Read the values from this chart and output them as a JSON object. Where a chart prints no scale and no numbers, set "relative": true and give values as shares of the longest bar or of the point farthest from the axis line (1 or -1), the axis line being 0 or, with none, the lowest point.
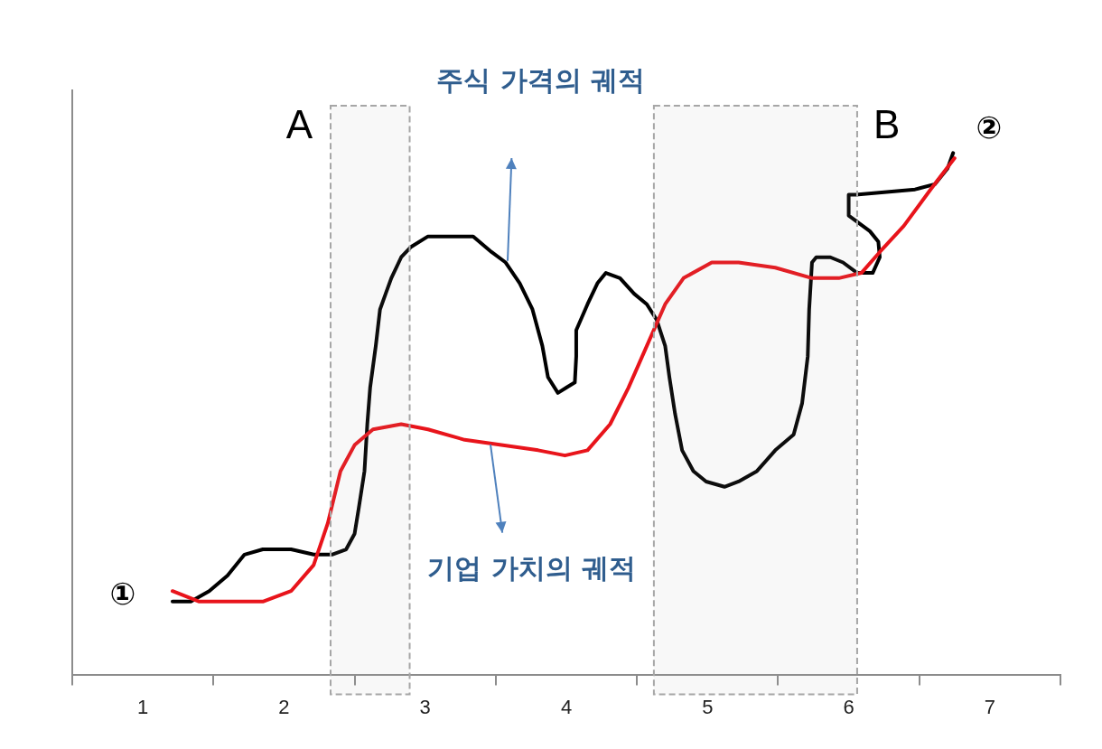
{
  "chart_data": {
    "type": "line",
    "relative": true,
    "xlim": [
      0.5,
      7.5
    ],
    "xticks": [
      {
        "value": 0.5,
        "label": null
      },
      {
        "value": 1,
        "label": "1"
      },
      {
        "value": 1.5,
        "label": null
      },
      {
        "value": 2,
        "label": "2"
      },
      {
        "value": 2.5,
        "label": null
      },
      {
        "value": 3,
        "label": "3"
      },
      {
        "value": 3.5,
        "label": null
      },
      {
        "value": 4,
        "label": "4"
      },
      {
        "value": 4.5,
        "label": null
      },
      {
        "value": 5,
        "label": "5"
      },
      {
        "value": 5.5,
        "label": null
      },
      {
        "value": 6,
        "label": "6"
      },
      {
        "value": 6.5,
        "label": null
      },
      {
        "value": 7,
        "label": "7"
      },
      {
        "value": 7.5,
        "label": null
      }
    ],
    "series": [
      {
        "color": "#e8141b",
        "x": [
          1.21,
          1.4,
          1.66,
          1.85,
          2.05,
          2.21,
          2.31,
          2.4,
          2.5,
          2.63,
          2.83,
          3.02,
          3.28,
          3.54,
          3.8,
          3.99,
          4.15,
          4.31,
          4.44,
          4.57,
          4.7,
          4.83,
          5.03,
          5.22,
          5.48,
          5.74,
          5.93,
          6.09,
          6.22,
          6.39,
          6.58,
          6.75
        ],
        "values": [
          0.16,
          0.14,
          0.14,
          0.14,
          0.16,
          0.21,
          0.29,
          0.39,
          0.44,
          0.47,
          0.48,
          0.47,
          0.45,
          0.44,
          0.43,
          0.42,
          0.43,
          0.48,
          0.55,
          0.63,
          0.71,
          0.76,
          0.79,
          0.79,
          0.78,
          0.76,
          0.76,
          0.77,
          0.81,
          0.86,
          0.93,
          0.99
        ]
      },
      {
        "color": "#000000",
        "x": [
          1.21,
          1.34,
          1.47,
          1.6,
          1.72,
          1.85,
          2.05,
          2.21,
          2.34,
          2.44,
          2.5,
          2.53,
          2.57,
          2.59,
          2.61,
          2.65,
          2.68,
          2.72,
          2.76,
          2.83,
          2.9,
          3.02,
          3.21,
          3.34,
          3.47,
          3.57,
          3.67,
          3.76,
          3.83,
          3.87,
          3.94,
          4.0,
          4.06,
          4.07,
          4.07,
          4.15,
          4.22,
          4.28,
          4.38,
          4.48,
          4.57,
          4.64,
          4.7,
          4.73,
          4.77,
          4.82,
          4.9,
          4.99,
          5.12,
          5.22,
          5.35,
          5.48,
          5.61,
          5.67,
          5.71,
          5.72,
          5.74,
          5.77,
          5.87,
          5.96,
          6.06,
          6.17,
          6.22,
          6.21,
          6.15,
          6.05,
          6.0,
          6.0,
          6.05,
          6.47,
          6.61,
          6.7,
          6.74
        ],
        "values": [
          0.14,
          0.14,
          0.16,
          0.19,
          0.23,
          0.24,
          0.24,
          0.23,
          0.23,
          0.24,
          0.27,
          0.32,
          0.39,
          0.48,
          0.55,
          0.63,
          0.7,
          0.73,
          0.76,
          0.8,
          0.82,
          0.84,
          0.84,
          0.84,
          0.81,
          0.79,
          0.75,
          0.7,
          0.63,
          0.57,
          0.54,
          0.55,
          0.56,
          0.61,
          0.66,
          0.71,
          0.75,
          0.77,
          0.76,
          0.73,
          0.71,
          0.68,
          0.63,
          0.57,
          0.5,
          0.43,
          0.39,
          0.37,
          0.36,
          0.37,
          0.39,
          0.43,
          0.46,
          0.52,
          0.61,
          0.7,
          0.79,
          0.8,
          0.8,
          0.79,
          0.77,
          0.77,
          0.8,
          0.83,
          0.85,
          0.87,
          0.88,
          0.92,
          0.92,
          0.93,
          0.94,
          0.97,
          1.0
        ]
      }
    ],
    "bands": [
      {
        "axis": "x",
        "from": 2.33,
        "to": 2.89,
        "label": "A",
        "color": "#a6a6a6"
      },
      {
        "axis": "x",
        "from": 4.62,
        "to": 6.06,
        "label": "B",
        "color": "#a6a6a6"
      }
    ],
    "annotations": [
      "주식 가격의 궤적",
      "기업 가치의 궤적",
      {
        "text": "①",
        "x": 1.21,
        "y": 0.15
      },
      {
        "text": "②",
        "x": 6.75,
        "y": 1.0
      }
    ],
    "grid": false,
    "legend": false
  }
}
